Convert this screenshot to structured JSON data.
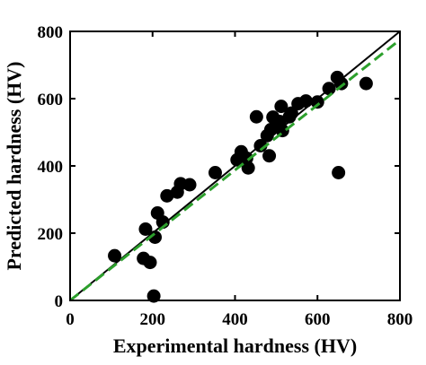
{
  "chart_data": {
    "type": "scatter",
    "xlabel": "Experimental hardness (HV)",
    "ylabel": "Predicted hardness (HV)",
    "xlim": [
      0,
      800
    ],
    "ylim": [
      0,
      800
    ],
    "xticks": [
      0,
      200,
      400,
      600,
      800
    ],
    "yticks": [
      0,
      200,
      400,
      600,
      800
    ],
    "grid": false,
    "colors": {
      "points": "#000000",
      "identity_line": "#000000",
      "fit_line": "#2ca02c"
    },
    "lines": [
      {
        "style": "solid",
        "x": [
          0,
          800
        ],
        "y": [
          0,
          800
        ]
      },
      {
        "style": "dashed",
        "x": [
          0,
          800
        ],
        "y": [
          0,
          775
        ]
      }
    ],
    "series": [
      {
        "marker": "filled-circle",
        "points": [
          [
            108,
            133
          ],
          [
            178,
            125
          ],
          [
            183,
            212
          ],
          [
            194,
            113
          ],
          [
            203,
            13
          ],
          [
            206,
            188
          ],
          [
            212,
            260
          ],
          [
            225,
            233
          ],
          [
            235,
            311
          ],
          [
            260,
            322
          ],
          [
            268,
            347
          ],
          [
            290,
            344
          ],
          [
            352,
            380
          ],
          [
            405,
            418
          ],
          [
            415,
            442
          ],
          [
            428,
            423
          ],
          [
            432,
            394
          ],
          [
            452,
            546
          ],
          [
            462,
            460
          ],
          [
            478,
            490
          ],
          [
            483,
            430
          ],
          [
            487,
            508
          ],
          [
            492,
            545
          ],
          [
            500,
            520
          ],
          [
            508,
            532
          ],
          [
            512,
            577
          ],
          [
            515,
            505
          ],
          [
            532,
            546
          ],
          [
            537,
            557
          ],
          [
            553,
            585
          ],
          [
            572,
            593
          ],
          [
            600,
            590
          ],
          [
            628,
            630
          ],
          [
            648,
            663
          ],
          [
            651,
            380
          ],
          [
            658,
            645
          ],
          [
            718,
            645
          ]
        ]
      }
    ]
  }
}
